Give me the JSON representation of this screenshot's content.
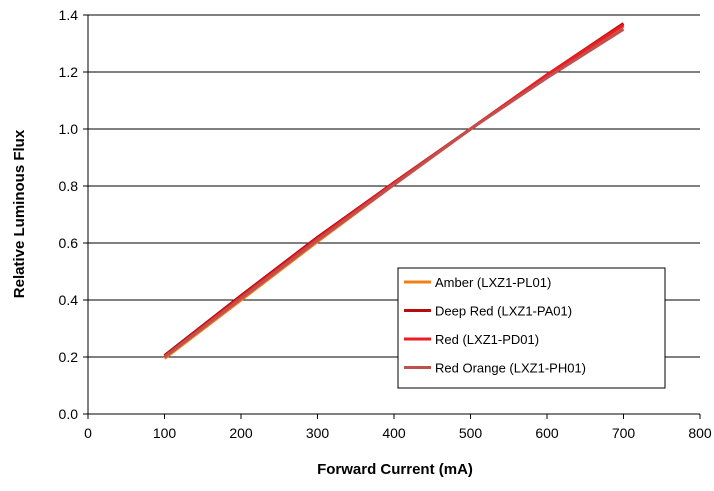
{
  "chart_data": {
    "type": "line",
    "title": "",
    "xlabel": "Forward Current (mA)",
    "ylabel": "Relative Luminous Flux",
    "xlim": [
      0,
      800
    ],
    "ylim": [
      0.0,
      1.4
    ],
    "x_ticks": [
      "0",
      "100",
      "200",
      "300",
      "400",
      "500",
      "600",
      "700",
      "800"
    ],
    "y_ticks": [
      "0.0",
      "0.2",
      "0.4",
      "0.6",
      "0.8",
      "1.0",
      "1.2",
      "1.4"
    ],
    "grid": "horizontal",
    "legend_position": "bottom-right",
    "series": [
      {
        "name": "Amber (LXZ1-PL01)",
        "color": "#f07f17",
        "x": [
          100,
          200,
          300,
          400,
          500,
          600,
          700
        ],
        "y": [
          0.195,
          0.4,
          0.605,
          0.805,
          1.0,
          1.185,
          1.36
        ]
      },
      {
        "name": "Deep Red (LXZ1-PA01)",
        "color": "#b50d0d",
        "x": [
          100,
          200,
          300,
          400,
          500,
          600,
          700
        ],
        "y": [
          0.205,
          0.415,
          0.62,
          0.812,
          1.0,
          1.19,
          1.37
        ]
      },
      {
        "name": "Red (LXZ1-PD01)",
        "color": "#ed1c24",
        "x": [
          100,
          200,
          300,
          400,
          500,
          600,
          700
        ],
        "y": [
          0.2,
          0.41,
          0.615,
          0.81,
          1.0,
          1.19,
          1.365
        ]
      },
      {
        "name": "Red Orange (LXZ1-PH01)",
        "color": "#c0504d",
        "x": [
          100,
          200,
          300,
          400,
          500,
          600,
          700
        ],
        "y": [
          0.2,
          0.405,
          0.61,
          0.805,
          1.0,
          1.18,
          1.35
        ]
      }
    ]
  }
}
